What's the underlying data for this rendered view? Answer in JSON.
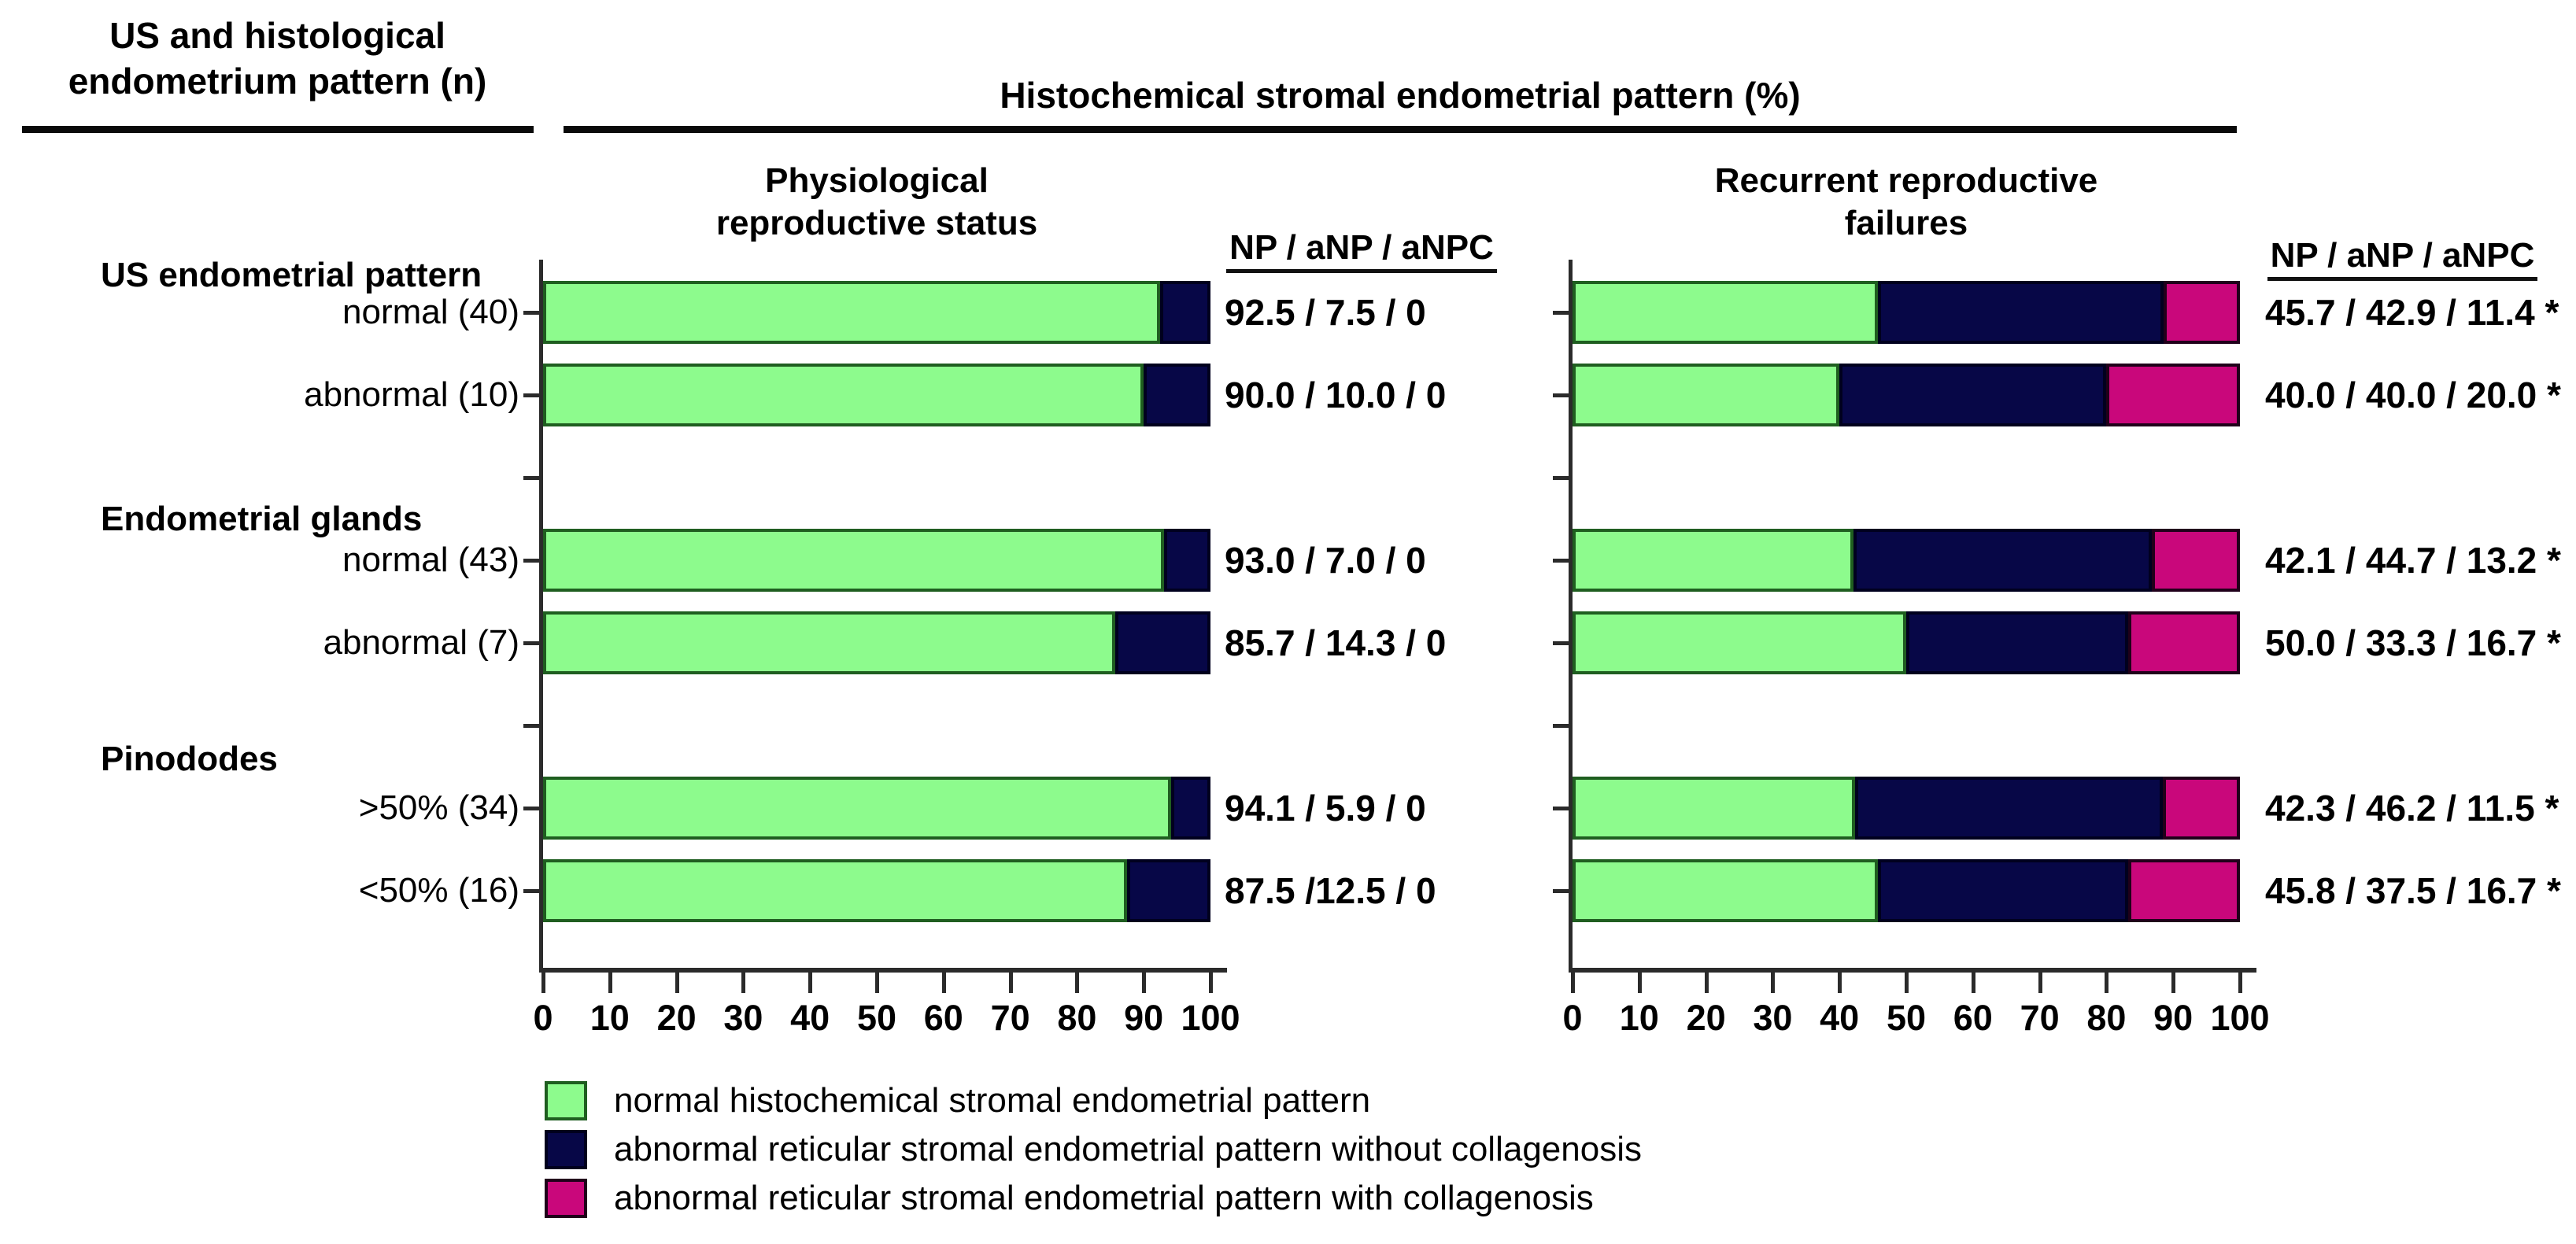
{
  "chart_data": {
    "type": "bar",
    "orientation": "horizontal",
    "stacked": true,
    "left_title_lines": [
      "US and histological",
      "endometrium pattern (n)"
    ],
    "title": "Histochemical stromal endometrial pattern (%)",
    "xlim": [
      0,
      100
    ],
    "x_ticks": [
      "0",
      "10",
      "20",
      "30",
      "40",
      "50",
      "60",
      "70",
      "80",
      "90",
      "100"
    ],
    "grid": false,
    "legend_position": "bottom-left",
    "legend": [
      {
        "key": "NP",
        "label": "normal histochemical stromal endometrial pattern",
        "color": "#8DFB8D",
        "border": "#1F5E20"
      },
      {
        "key": "aNP",
        "label": "abnormal reticular stromal endometrial pattern without collagenosis",
        "color": "#070747",
        "border": "#00001E"
      },
      {
        "key": "aNPC",
        "label": "abnormal reticular stromal endometrial pattern with collagenosis",
        "color": "#C9077B",
        "border": "#20001A"
      }
    ],
    "row_groups": [
      {
        "header": "US endometrial pattern"
      },
      {
        "header": "Endometrial glands"
      },
      {
        "header": "Pinododes"
      }
    ],
    "rows": [
      {
        "group": "US endometrial pattern",
        "label": "normal (40)"
      },
      {
        "group": "US endometrial pattern",
        "label": "abnormal (10)"
      },
      {
        "group": "Endometrial glands",
        "label": "normal (43)"
      },
      {
        "group": "Endometrial glands",
        "label": "abnormal (7)"
      },
      {
        "group": "Pinododes",
        "label": ">50% (34)"
      },
      {
        "group": "Pinododes",
        "label": "<50% (16)"
      }
    ],
    "panels": [
      {
        "title_lines": [
          "Physiological",
          "reproductive status"
        ],
        "values_header": "NP / aNP / aNPC",
        "series": [
          {
            "row": "normal (40)",
            "NP": 92.5,
            "aNP": 7.5,
            "aNPC": 0,
            "value_label": "92.5 / 7.5 / 0"
          },
          {
            "row": "abnormal (10)",
            "NP": 90.0,
            "aNP": 10.0,
            "aNPC": 0,
            "value_label": "90.0 / 10.0 / 0"
          },
          {
            "row": "normal (43)",
            "NP": 93.0,
            "aNP": 7.0,
            "aNPC": 0,
            "value_label": "93.0 / 7.0 / 0"
          },
          {
            "row": "abnormal (7)",
            "NP": 85.7,
            "aNP": 14.3,
            "aNPC": 0,
            "value_label": "85.7 / 14.3 / 0"
          },
          {
            "row": ">50% (34)",
            "NP": 94.1,
            "aNP": 5.9,
            "aNPC": 0,
            "value_label": "94.1 / 5.9 / 0"
          },
          {
            "row": "<50% (16)",
            "NP": 87.5,
            "aNP": 12.5,
            "aNPC": 0,
            "value_label": "87.5 /12.5 / 0"
          }
        ]
      },
      {
        "title_lines": [
          "Recurrent reproductive",
          "failures"
        ],
        "values_header": "NP / aNP / aNPC",
        "series": [
          {
            "row": "normal (40)",
            "NP": 45.7,
            "aNP": 42.9,
            "aNPC": 11.4,
            "value_label": "45.7 / 42.9 / 11.4 *"
          },
          {
            "row": "abnormal (10)",
            "NP": 40.0,
            "aNP": 40.0,
            "aNPC": 20.0,
            "value_label": "40.0 / 40.0 / 20.0 *"
          },
          {
            "row": "normal (43)",
            "NP": 42.1,
            "aNP": 44.7,
            "aNPC": 13.2,
            "value_label": "42.1 / 44.7 / 13.2 *"
          },
          {
            "row": "abnormal (7)",
            "NP": 50.0,
            "aNP": 33.3,
            "aNPC": 16.7,
            "value_label": "50.0 / 33.3 / 16.7 *"
          },
          {
            "row": ">50% (34)",
            "NP": 42.3,
            "aNP": 46.2,
            "aNPC": 11.5,
            "value_label": "42.3 / 46.2 / 11.5 *"
          },
          {
            "row": "<50% (16)",
            "NP": 45.8,
            "aNP": 37.5,
            "aNPC": 16.7,
            "value_label": "45.8 / 37.5 / 16.7 *"
          }
        ]
      }
    ]
  }
}
